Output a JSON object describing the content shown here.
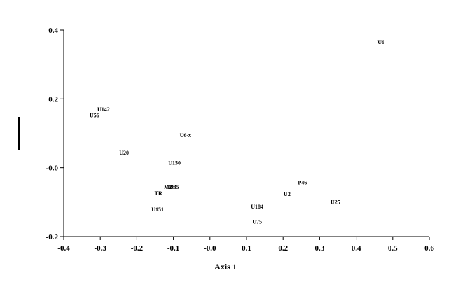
{
  "chart_data": {
    "type": "scatter",
    "x_label": "Axis 1",
    "labels": [
      "U6",
      "U142",
      "U56",
      "U6-x",
      "U20",
      "U150",
      "P46",
      "M28",
      "U85",
      "TR",
      "U2",
      "U25",
      "U184",
      "U151",
      "U75"
    ],
    "x": [
      0.468,
      -0.291,
      -0.316,
      -0.067,
      -0.235,
      -0.097,
      0.253,
      -0.111,
      -0.098,
      -0.141,
      0.211,
      0.343,
      0.129,
      -0.143,
      0.129
    ],
    "y": [
      0.363,
      0.168,
      0.15,
      0.093,
      0.042,
      0.012,
      -0.045,
      -0.058,
      -0.058,
      -0.076,
      -0.078,
      -0.102,
      -0.115,
      -0.123,
      -0.159
    ],
    "xlim": [
      -0.4,
      0.6
    ],
    "xticks": [
      -0.4,
      -0.3,
      -0.2,
      -0.1,
      {
        "value": 0,
        "label": "-0.0"
      },
      0.1,
      0.2,
      0.3,
      0.4,
      0.5,
      0.6
    ],
    "ylim": [
      -0.2,
      0.4
    ],
    "yticks": [
      -0.2,
      {
        "value": 0,
        "label": "-0.0"
      },
      0.2,
      0.4
    ],
    "color": "#000000"
  }
}
